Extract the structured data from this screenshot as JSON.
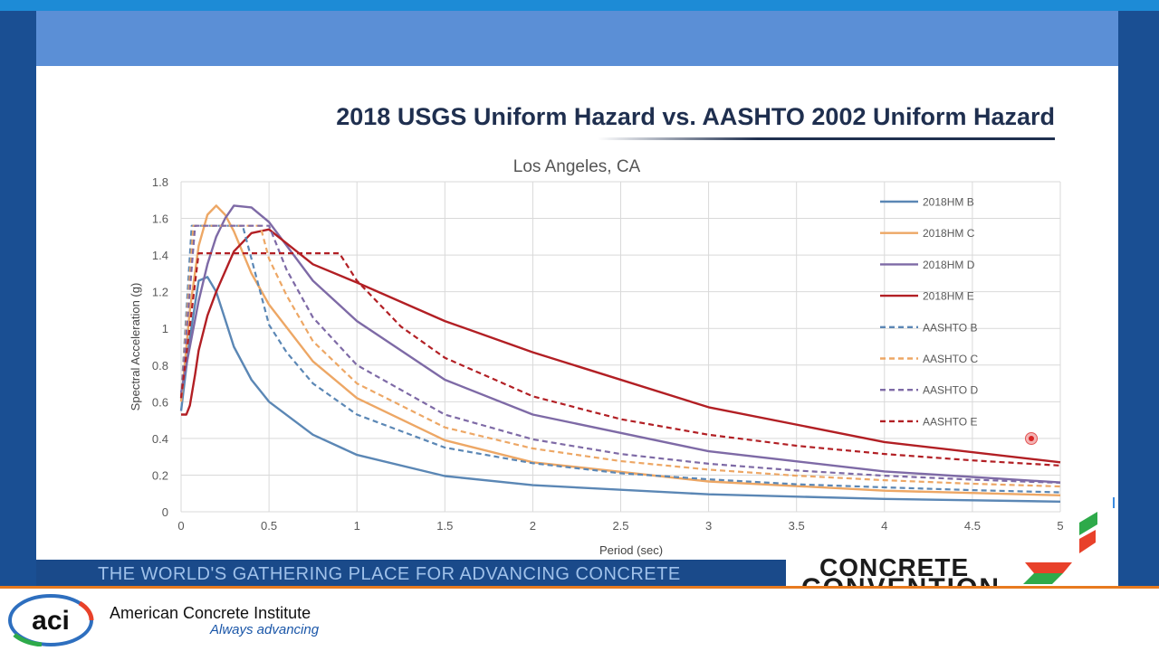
{
  "slide": {
    "title": "2018 USGS Uniform Hazard vs. AASHTO 2002 Uniform Hazard",
    "banner_text": "THE WORLD'S GATHERING PLACE FOR ADVANCING CONCRETE",
    "convention_logo_text": [
      "CONCRETE",
      "CONVENTION"
    ]
  },
  "footer": {
    "org_name": "American Concrete Institute",
    "tagline": "Always advancing",
    "logo_text": "aci"
  },
  "colors": {
    "frame_top": "#1d8bd6",
    "frame_side": "#1a4f93",
    "band": "#5b8fd6",
    "footer_accent": "#e87a1e",
    "B": "#5b87b5",
    "C": "#eda765",
    "D": "#7e6aa6",
    "E": "#b21f24"
  },
  "chart_data": {
    "type": "line",
    "title": "Los Angeles, CA",
    "xlabel": "Period (sec)",
    "ylabel": "Spectral Acceleration (g)",
    "xlim": [
      0,
      5
    ],
    "ylim": [
      0,
      1.8
    ],
    "xticks": [
      0,
      0.5,
      1,
      1.5,
      2,
      2.5,
      3,
      3.5,
      4,
      4.5,
      5
    ],
    "xtick_labels": [
      "0",
      "0.5",
      "1",
      "1.5",
      "2",
      "2.5",
      "3",
      "3.5",
      "4",
      "4.5",
      "5"
    ],
    "yticks": [
      0,
      0.2,
      0.4,
      0.6,
      0.8,
      1,
      1.2,
      1.4,
      1.6,
      1.8
    ],
    "ytick_labels": [
      "0",
      "0.2",
      "0.4",
      "0.6",
      "0.8",
      "1",
      "1.2",
      "1.4",
      "1.6",
      "1.8"
    ],
    "grid": true,
    "legend_position": "right inside plot",
    "series": [
      {
        "name": "2018HM B",
        "color": "#5b87b5",
        "dash": false,
        "x": [
          0,
          0.05,
          0.1,
          0.15,
          0.2,
          0.25,
          0.3,
          0.4,
          0.5,
          0.75,
          1,
          1.5,
          2,
          3,
          4,
          5
        ],
        "y": [
          0.55,
          0.95,
          1.26,
          1.28,
          1.2,
          1.05,
          0.9,
          0.72,
          0.6,
          0.42,
          0.31,
          0.195,
          0.145,
          0.095,
          0.07,
          0.055
        ]
      },
      {
        "name": "2018HM C",
        "color": "#eda765",
        "dash": false,
        "x": [
          0,
          0.05,
          0.1,
          0.15,
          0.2,
          0.25,
          0.3,
          0.4,
          0.5,
          0.75,
          1,
          1.5,
          2,
          3,
          4,
          5
        ],
        "y": [
          0.6,
          1.1,
          1.45,
          1.62,
          1.67,
          1.62,
          1.53,
          1.3,
          1.13,
          0.82,
          0.62,
          0.39,
          0.27,
          0.165,
          0.115,
          0.09
        ]
      },
      {
        "name": "2018HM D",
        "color": "#7e6aa6",
        "dash": false,
        "x": [
          0,
          0.05,
          0.1,
          0.15,
          0.2,
          0.25,
          0.3,
          0.4,
          0.5,
          0.75,
          1,
          1.5,
          2,
          3,
          4,
          5
        ],
        "y": [
          0.65,
          0.9,
          1.15,
          1.35,
          1.5,
          1.6,
          1.67,
          1.66,
          1.58,
          1.26,
          1.04,
          0.72,
          0.53,
          0.33,
          0.22,
          0.16
        ]
      },
      {
        "name": "2018HM E",
        "color": "#b21f24",
        "dash": false,
        "x": [
          0,
          0.03,
          0.05,
          0.08,
          0.1,
          0.15,
          0.2,
          0.3,
          0.4,
          0.5,
          0.75,
          1,
          1.5,
          2,
          3,
          4,
          5
        ],
        "y": [
          0.53,
          0.53,
          0.58,
          0.75,
          0.88,
          1.07,
          1.2,
          1.42,
          1.52,
          1.54,
          1.35,
          1.25,
          1.04,
          0.87,
          0.57,
          0.38,
          0.27
        ]
      },
      {
        "name": "AASHTO B",
        "color": "#5b87b5",
        "dash": true,
        "x": [
          0,
          0.06,
          0.35,
          0.45,
          0.5,
          0.6,
          0.75,
          1,
          1.5,
          2,
          2.5,
          3,
          3.5,
          4,
          4.5,
          5
        ],
        "y": [
          0.62,
          1.56,
          1.56,
          1.2,
          1.02,
          0.87,
          0.7,
          0.53,
          0.35,
          0.265,
          0.21,
          0.177,
          0.15,
          0.133,
          0.118,
          0.106
        ]
      },
      {
        "name": "AASHTO C",
        "color": "#eda765",
        "dash": true,
        "x": [
          0,
          0.07,
          0.45,
          0.5,
          0.6,
          0.75,
          1,
          1.5,
          2,
          2.5,
          3,
          3.5,
          4,
          4.5,
          5
        ],
        "y": [
          0.62,
          1.56,
          1.56,
          1.38,
          1.18,
          0.93,
          0.7,
          0.46,
          0.345,
          0.276,
          0.23,
          0.197,
          0.172,
          0.153,
          0.138
        ]
      },
      {
        "name": "AASHTO D",
        "color": "#7e6aa6",
        "dash": true,
        "x": [
          0,
          0.08,
          0.5,
          0.55,
          0.6,
          0.75,
          1,
          1.5,
          2,
          2.5,
          3,
          3.5,
          4,
          4.5,
          5
        ],
        "y": [
          0.62,
          1.56,
          1.56,
          1.44,
          1.32,
          1.06,
          0.8,
          0.53,
          0.395,
          0.315,
          0.262,
          0.225,
          0.197,
          0.175,
          0.158
        ]
      },
      {
        "name": "AASHTO E",
        "color": "#b21f24",
        "dash": true,
        "x": [
          0,
          0.1,
          0.9,
          1,
          1.25,
          1.5,
          2,
          2.5,
          3,
          3.5,
          4,
          4.5,
          5
        ],
        "y": [
          0.62,
          1.41,
          1.41,
          1.26,
          1.01,
          0.84,
          0.63,
          0.505,
          0.42,
          0.36,
          0.315,
          0.28,
          0.252
        ]
      }
    ]
  }
}
